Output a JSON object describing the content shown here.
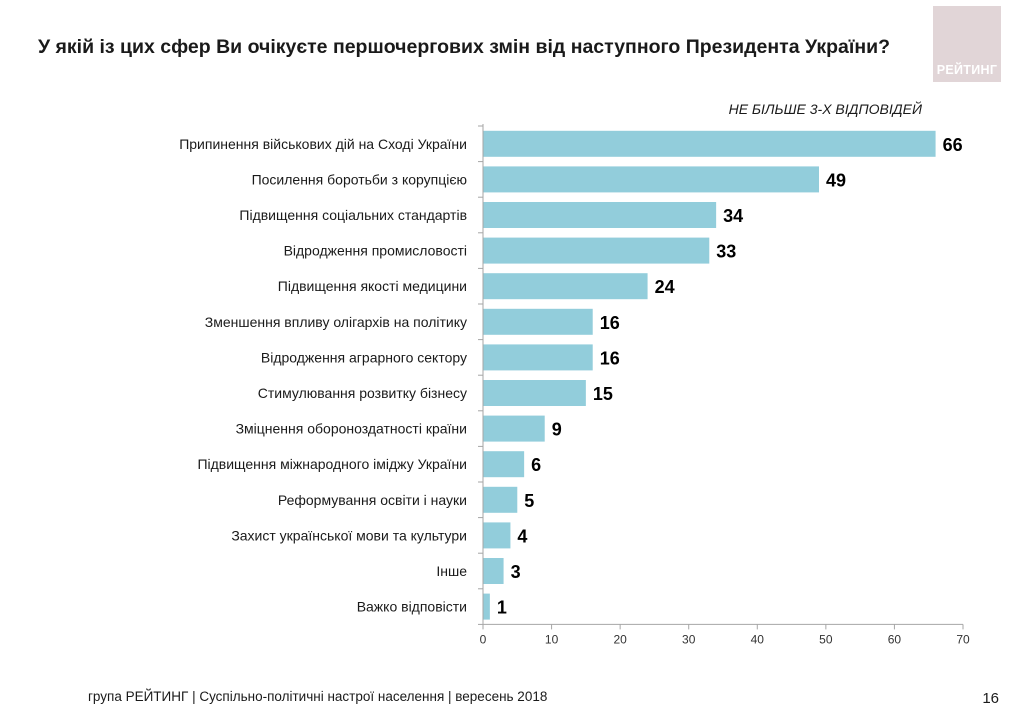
{
  "title": "У якій із цих сфер Ви очікуєте першочергових змін від наступного Президента України?",
  "logo_text": "РЕЙТИНГ",
  "note": "НЕ БІЛЬШЕ 3-Х ВІДПОВІДЕЙ",
  "footer": "група РЕЙТИНГ |  Суспільно-політичні настрої населення | вересень  2018",
  "page_number": "16",
  "colors": {
    "bar": "#92cddb",
    "axis": "#a6a6a6",
    "label": "#1a1a1a",
    "logo_bg": "#e1d5d7"
  },
  "chart_data": {
    "type": "bar",
    "orientation": "horizontal",
    "categories": [
      "Припинення військових дій на Сході України",
      "Посилення боротьби з корупцією",
      "Підвищення соціальних стандартів",
      "Відродження промисловості",
      "Підвищення якості медицини",
      "Зменшення впливу олігархів на політику",
      "Відродження аграрного сектору",
      "Стимулювання розвитку бізнесу",
      "Зміцнення обороноздатності країни",
      "Підвищення міжнародного іміджу України",
      "Реформування освіти і науки",
      "Захист української мови та культури",
      "Інше",
      "Важко відповісти"
    ],
    "values": [
      66,
      49,
      34,
      33,
      24,
      16,
      16,
      15,
      9,
      6,
      5,
      4,
      3,
      1
    ],
    "xlim": [
      0,
      70
    ],
    "xticks": [
      0,
      10,
      20,
      30,
      40,
      50,
      60,
      70
    ],
    "grid": false,
    "data_labels": true
  }
}
